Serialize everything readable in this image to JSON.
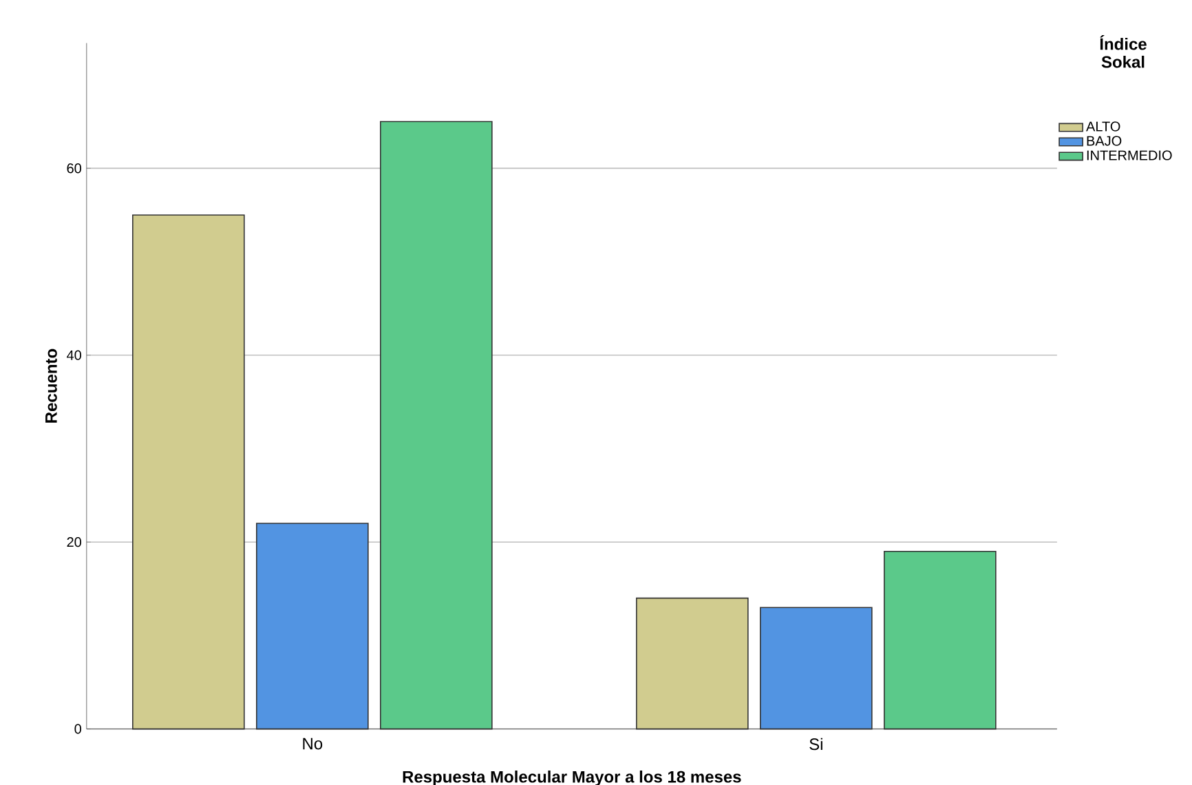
{
  "chart_data": {
    "type": "bar",
    "xlabel": "Respuesta Molecular Mayor a los 18 meses",
    "ylabel": "Recuento",
    "legend_title": "Índice Sokal",
    "categories": [
      "No",
      "Si"
    ],
    "series": [
      {
        "name": "ALTO",
        "color": "#d1cc8f",
        "values": [
          55,
          14
        ]
      },
      {
        "name": "BAJO",
        "color": "#5294e2",
        "values": [
          22,
          13
        ]
      },
      {
        "name": "INTERMEDIO",
        "color": "#5bc98a",
        "values": [
          65,
          19
        ]
      }
    ],
    "ylim": [
      0,
      73.4
    ],
    "yticks": [
      0,
      20,
      40,
      60
    ],
    "grid": "y",
    "legend": "top right"
  }
}
